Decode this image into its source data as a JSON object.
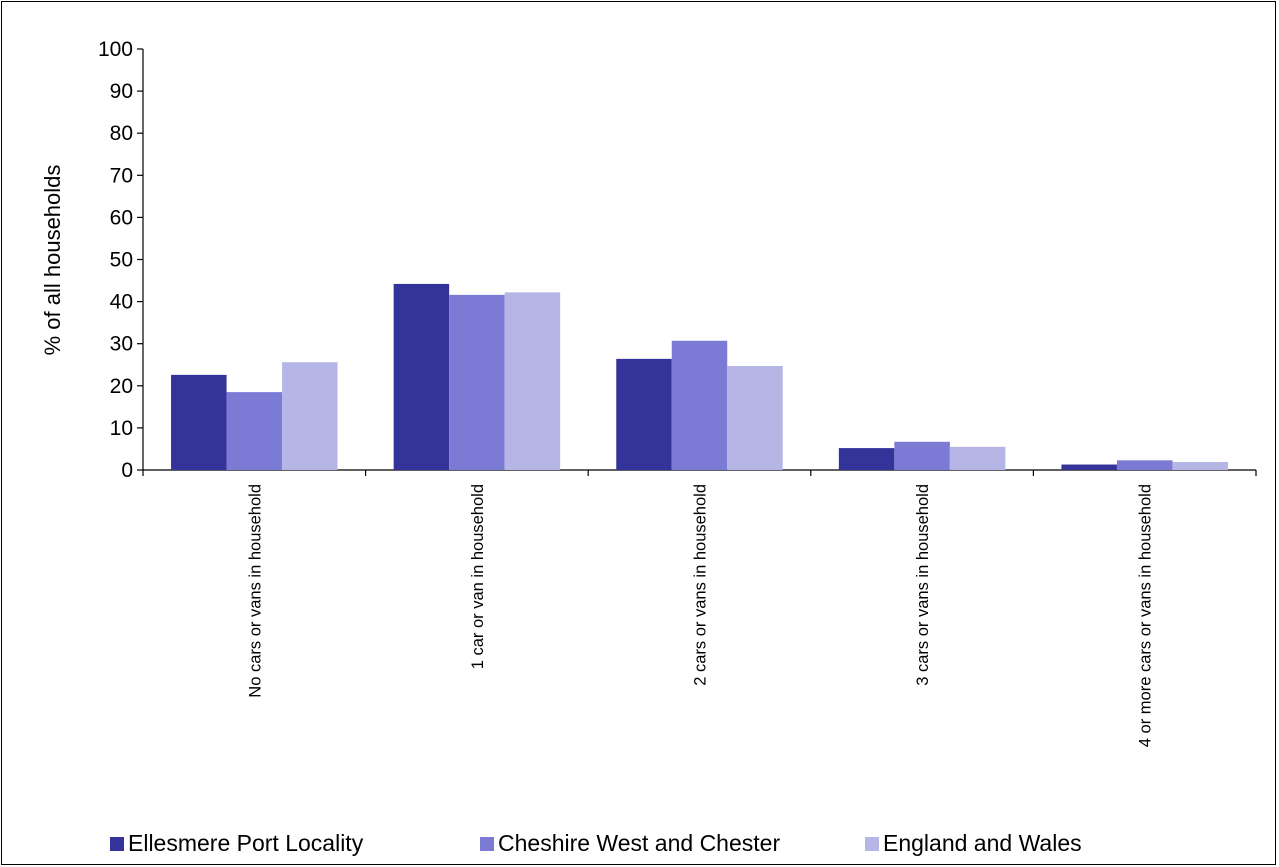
{
  "chart_data": {
    "type": "bar",
    "ylabel": "% of all households",
    "ylim": [
      0,
      100
    ],
    "yticks": [
      0,
      10,
      20,
      30,
      40,
      50,
      60,
      70,
      80,
      90,
      100
    ],
    "categories": [
      "No cars or vans in household",
      "1 car or van in household",
      "2 cars or vans in household",
      "3 cars or vans in household",
      "4 or more cars or vans in household"
    ],
    "series": [
      {
        "name": "Ellesmere Port Locality",
        "color": "#333399",
        "values": [
          22.6,
          44.2,
          26.4,
          5.2,
          1.3
        ]
      },
      {
        "name": "Cheshire West and Chester",
        "color": "#7b7bd5",
        "values": [
          18.5,
          41.6,
          30.7,
          6.7,
          2.3
        ]
      },
      {
        "name": "England and Wales",
        "color": "#b6b6e6",
        "values": [
          25.6,
          42.2,
          24.7,
          5.5,
          1.9
        ]
      }
    ],
    "legend_position": "bottom",
    "grid": false
  }
}
